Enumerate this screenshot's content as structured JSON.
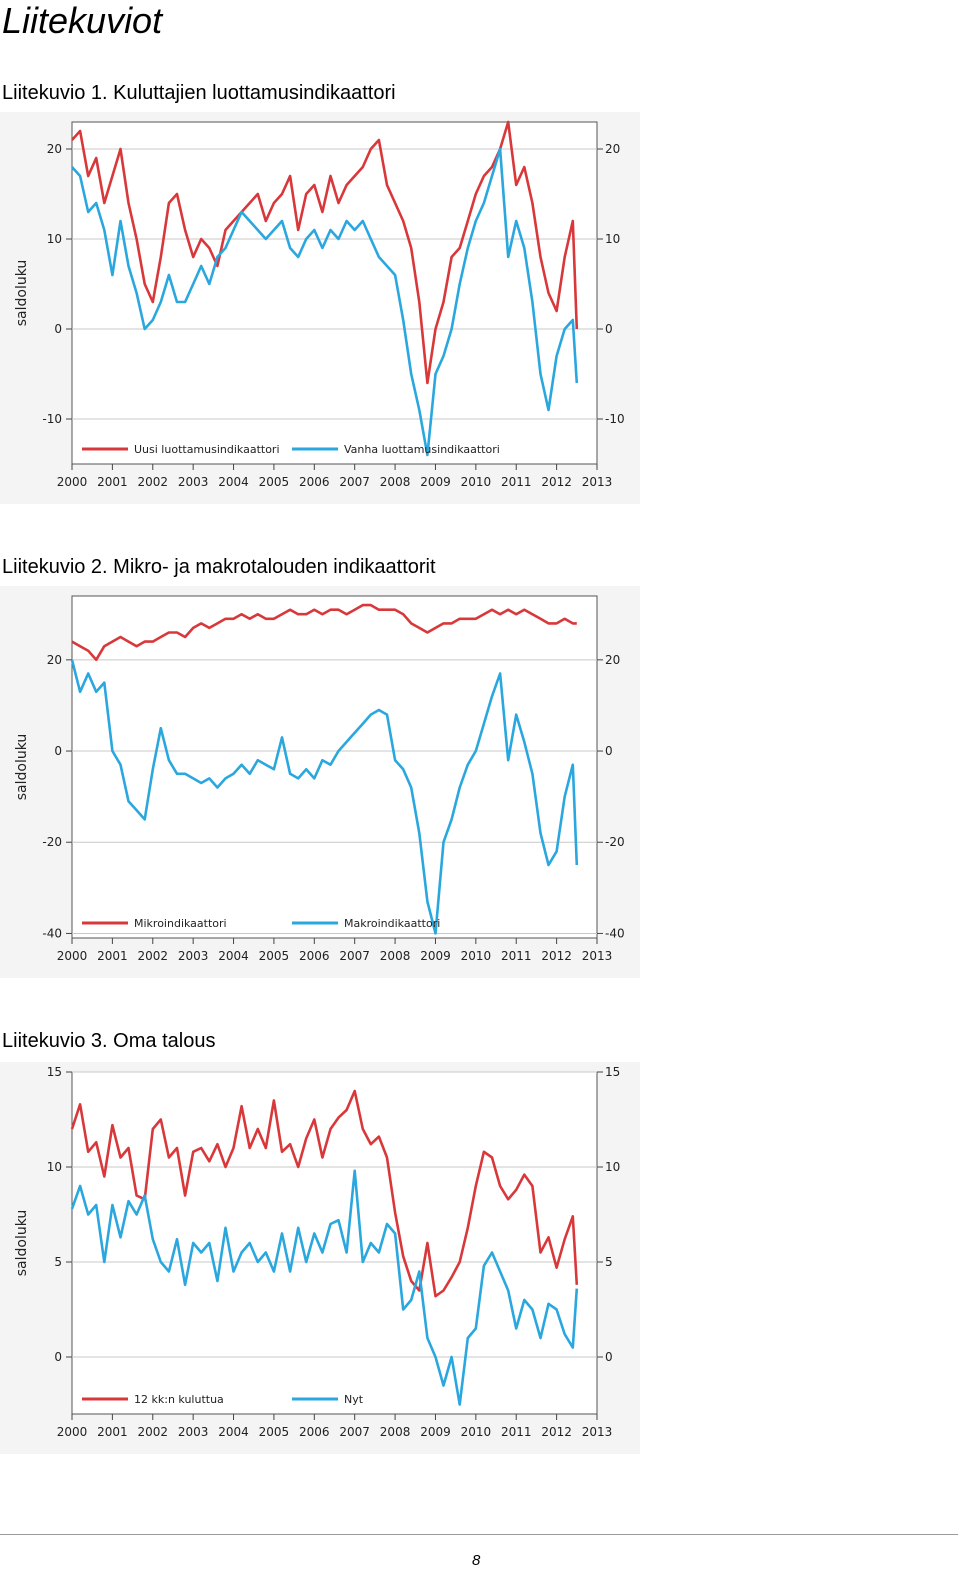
{
  "page": {
    "heading": "Liitekuviot",
    "page_number": "8"
  },
  "chart_data": [
    {
      "type": "line",
      "caption": "Liitekuvio 1. Kuluttajien luottamusindikaattori",
      "ylabel": "saldoluku",
      "ylim": [
        -15,
        23
      ],
      "yticks": [
        -10,
        0,
        10,
        20
      ],
      "xlim": [
        2000,
        2013
      ],
      "xticks": [
        "2000",
        "2001",
        "2002",
        "2003",
        "2004",
        "2005",
        "2006",
        "2007",
        "2008",
        "2009",
        "2010",
        "2011",
        "2012",
        "2013"
      ],
      "grid": "horizontal",
      "legend_position": "bottom-inside",
      "right_axis": true,
      "series": [
        {
          "name": "Uusi luottamusindikaattori",
          "color": "#d9383a",
          "x": [
            2000.0,
            2000.2,
            2000.4,
            2000.6,
            2000.8,
            2001.0,
            2001.2,
            2001.4,
            2001.6,
            2001.8,
            2002.0,
            2002.2,
            2002.4,
            2002.6,
            2002.8,
            2003.0,
            2003.2,
            2003.4,
            2003.6,
            2003.8,
            2004.0,
            2004.2,
            2004.4,
            2004.6,
            2004.8,
            2005.0,
            2005.2,
            2005.4,
            2005.6,
            2005.8,
            2006.0,
            2006.2,
            2006.4,
            2006.6,
            2006.8,
            2007.0,
            2007.2,
            2007.4,
            2007.6,
            2007.8,
            2008.0,
            2008.2,
            2008.4,
            2008.6,
            2008.8,
            2009.0,
            2009.2,
            2009.4,
            2009.6,
            2009.8,
            2010.0,
            2010.2,
            2010.4,
            2010.6,
            2010.8,
            2011.0,
            2011.2,
            2011.4,
            2011.6,
            2011.8,
            2012.0,
            2012.2,
            2012.4,
            2012.5
          ],
          "values": [
            21,
            22,
            17,
            19,
            14,
            17,
            20,
            14,
            10,
            5,
            3,
            8,
            14,
            15,
            11,
            8,
            10,
            9,
            7,
            11,
            12,
            13,
            14,
            15,
            12,
            14,
            15,
            17,
            11,
            15,
            16,
            13,
            17,
            14,
            16,
            17,
            18,
            20,
            21,
            16,
            14,
            12,
            9,
            3,
            -6,
            0,
            3,
            8,
            9,
            12,
            15,
            17,
            18,
            20,
            23,
            16,
            18,
            14,
            8,
            4,
            2,
            8,
            12,
            0
          ]
        },
        {
          "name": "Vanha luottamusindikaattori",
          "color": "#2aa7de",
          "x": [
            2000.0,
            2000.2,
            2000.4,
            2000.6,
            2000.8,
            2001.0,
            2001.2,
            2001.4,
            2001.6,
            2001.8,
            2002.0,
            2002.2,
            2002.4,
            2002.6,
            2002.8,
            2003.0,
            2003.2,
            2003.4,
            2003.6,
            2003.8,
            2004.0,
            2004.2,
            2004.4,
            2004.6,
            2004.8,
            2005.0,
            2005.2,
            2005.4,
            2005.6,
            2005.8,
            2006.0,
            2006.2,
            2006.4,
            2006.6,
            2006.8,
            2007.0,
            2007.2,
            2007.4,
            2007.6,
            2007.8,
            2008.0,
            2008.2,
            2008.4,
            2008.6,
            2008.8,
            2009.0,
            2009.2,
            2009.4,
            2009.6,
            2009.8,
            2010.0,
            2010.2,
            2010.4,
            2010.6,
            2010.8,
            2011.0,
            2011.2,
            2011.4,
            2011.6,
            2011.8,
            2012.0,
            2012.2,
            2012.4,
            2012.5
          ],
          "values": [
            18,
            17,
            13,
            14,
            11,
            6,
            12,
            7,
            4,
            0,
            1,
            3,
            6,
            3,
            3,
            5,
            7,
            5,
            8,
            9,
            11,
            13,
            12,
            11,
            10,
            11,
            12,
            9,
            8,
            10,
            11,
            9,
            11,
            10,
            12,
            11,
            12,
            10,
            8,
            7,
            6,
            1,
            -5,
            -9,
            -14,
            -5,
            -3,
            0,
            5,
            9,
            12,
            14,
            17,
            20,
            8,
            12,
            9,
            3,
            -5,
            -9,
            -3,
            0,
            1,
            -6
          ]
        }
      ]
    },
    {
      "type": "line",
      "caption": "Liitekuvio 2. Mikro- ja makrotalouden indikaattorit",
      "ylabel": "saldoluku",
      "ylim": [
        -41,
        34
      ],
      "yticks": [
        -40,
        -20,
        0,
        20
      ],
      "xlim": [
        2000,
        2013
      ],
      "xticks": [
        "2000",
        "2001",
        "2002",
        "2003",
        "2004",
        "2005",
        "2006",
        "2007",
        "2008",
        "2009",
        "2010",
        "2011",
        "2012",
        "2013"
      ],
      "grid": "horizontal",
      "legend_position": "bottom-inside",
      "right_axis": true,
      "series": [
        {
          "name": "Mikroindikaattori",
          "color": "#d9383a",
          "x": [
            2000.0,
            2000.2,
            2000.4,
            2000.6,
            2000.8,
            2001.0,
            2001.2,
            2001.4,
            2001.6,
            2001.8,
            2002.0,
            2002.2,
            2002.4,
            2002.6,
            2002.8,
            2003.0,
            2003.2,
            2003.4,
            2003.6,
            2003.8,
            2004.0,
            2004.2,
            2004.4,
            2004.6,
            2004.8,
            2005.0,
            2005.2,
            2005.4,
            2005.6,
            2005.8,
            2006.0,
            2006.2,
            2006.4,
            2006.6,
            2006.8,
            2007.0,
            2007.2,
            2007.4,
            2007.6,
            2007.8,
            2008.0,
            2008.2,
            2008.4,
            2008.6,
            2008.8,
            2009.0,
            2009.2,
            2009.4,
            2009.6,
            2009.8,
            2010.0,
            2010.2,
            2010.4,
            2010.6,
            2010.8,
            2011.0,
            2011.2,
            2011.4,
            2011.6,
            2011.8,
            2012.0,
            2012.2,
            2012.4,
            2012.5
          ],
          "values": [
            24,
            23,
            22,
            20,
            23,
            24,
            25,
            24,
            23,
            24,
            24,
            25,
            26,
            26,
            25,
            27,
            28,
            27,
            28,
            29,
            29,
            30,
            29,
            30,
            29,
            29,
            30,
            31,
            30,
            30,
            31,
            30,
            31,
            31,
            30,
            31,
            32,
            32,
            31,
            31,
            31,
            30,
            28,
            27,
            26,
            27,
            28,
            28,
            29,
            29,
            29,
            30,
            31,
            30,
            31,
            30,
            31,
            30,
            29,
            28,
            28,
            29,
            28,
            28
          ]
        },
        {
          "name": "Makroindikaattori",
          "color": "#2aa7de",
          "x": [
            2000.0,
            2000.2,
            2000.4,
            2000.6,
            2000.8,
            2001.0,
            2001.2,
            2001.4,
            2001.6,
            2001.8,
            2002.0,
            2002.2,
            2002.4,
            2002.6,
            2002.8,
            2003.0,
            2003.2,
            2003.4,
            2003.6,
            2003.8,
            2004.0,
            2004.2,
            2004.4,
            2004.6,
            2004.8,
            2005.0,
            2005.2,
            2005.4,
            2005.6,
            2005.8,
            2006.0,
            2006.2,
            2006.4,
            2006.6,
            2006.8,
            2007.0,
            2007.2,
            2007.4,
            2007.6,
            2007.8,
            2008.0,
            2008.2,
            2008.4,
            2008.6,
            2008.8,
            2009.0,
            2009.2,
            2009.4,
            2009.6,
            2009.8,
            2010.0,
            2010.2,
            2010.4,
            2010.6,
            2010.8,
            2011.0,
            2011.2,
            2011.4,
            2011.6,
            2011.8,
            2012.0,
            2012.2,
            2012.4,
            2012.5
          ],
          "values": [
            20,
            13,
            17,
            13,
            15,
            0,
            -3,
            -11,
            -13,
            -15,
            -4,
            5,
            -2,
            -5,
            -5,
            -6,
            -7,
            -6,
            -8,
            -6,
            -5,
            -3,
            -5,
            -2,
            -3,
            -4,
            3,
            -5,
            -6,
            -4,
            -6,
            -2,
            -3,
            0,
            2,
            4,
            6,
            8,
            9,
            8,
            -2,
            -4,
            -8,
            -18,
            -33,
            -40,
            -20,
            -15,
            -8,
            -3,
            0,
            6,
            12,
            17,
            -2,
            8,
            2,
            -5,
            -18,
            -25,
            -22,
            -10,
            -3,
            -25
          ]
        }
      ]
    },
    {
      "type": "line",
      "caption": "Liitekuvio 3. Oma talous",
      "ylabel": "saldoluku",
      "ylim": [
        -3,
        15
      ],
      "yticks": [
        0,
        5,
        10,
        15
      ],
      "xlim": [
        2000,
        2013
      ],
      "xticks": [
        "2000",
        "2001",
        "2002",
        "2003",
        "2004",
        "2005",
        "2006",
        "2007",
        "2008",
        "2009",
        "2010",
        "2011",
        "2012",
        "2013"
      ],
      "grid": "horizontal",
      "legend_position": "bottom-inside",
      "right_axis": true,
      "series": [
        {
          "name": "12 kk:n kuluttua",
          "color": "#d9383a",
          "x": [
            2000.0,
            2000.2,
            2000.4,
            2000.6,
            2000.8,
            2001.0,
            2001.2,
            2001.4,
            2001.6,
            2001.8,
            2002.0,
            2002.2,
            2002.4,
            2002.6,
            2002.8,
            2003.0,
            2003.2,
            2003.4,
            2003.6,
            2003.8,
            2004.0,
            2004.2,
            2004.4,
            2004.6,
            2004.8,
            2005.0,
            2005.2,
            2005.4,
            2005.6,
            2005.8,
            2006.0,
            2006.2,
            2006.4,
            2006.6,
            2006.8,
            2007.0,
            2007.2,
            2007.4,
            2007.6,
            2007.8,
            2008.0,
            2008.2,
            2008.4,
            2008.6,
            2008.8,
            2009.0,
            2009.2,
            2009.4,
            2009.6,
            2009.8,
            2010.0,
            2010.2,
            2010.4,
            2010.6,
            2010.8,
            2011.0,
            2011.2,
            2011.4,
            2011.6,
            2011.8,
            2012.0,
            2012.2,
            2012.4,
            2012.5
          ],
          "values": [
            12,
            13.3,
            10.8,
            11.3,
            9.5,
            12.2,
            10.5,
            11,
            8.5,
            8.3,
            12,
            12.5,
            10.5,
            11,
            8.5,
            10.8,
            11,
            10.3,
            11.2,
            10,
            11,
            13.2,
            11,
            12,
            11,
            13.5,
            10.8,
            11.2,
            10,
            11.5,
            12.5,
            10.5,
            12,
            12.6,
            13,
            14,
            12,
            11.2,
            11.6,
            10.5,
            7.6,
            5.3,
            4,
            3.5,
            6,
            3.2,
            3.5,
            4.2,
            5,
            6.8,
            9,
            10.8,
            10.5,
            9,
            8.3,
            8.8,
            9.6,
            9,
            5.5,
            6.3,
            4.7,
            6.2,
            7.4,
            3.8
          ]
        },
        {
          "name": "Nyt",
          "color": "#2aa7de",
          "x": [
            2000.0,
            2000.2,
            2000.4,
            2000.6,
            2000.8,
            2001.0,
            2001.2,
            2001.4,
            2001.6,
            2001.8,
            2002.0,
            2002.2,
            2002.4,
            2002.6,
            2002.8,
            2003.0,
            2003.2,
            2003.4,
            2003.6,
            2003.8,
            2004.0,
            2004.2,
            2004.4,
            2004.6,
            2004.8,
            2005.0,
            2005.2,
            2005.4,
            2005.6,
            2005.8,
            2006.0,
            2006.2,
            2006.4,
            2006.6,
            2006.8,
            2007.0,
            2007.2,
            2007.4,
            2007.6,
            2007.8,
            2008.0,
            2008.2,
            2008.4,
            2008.6,
            2008.8,
            2009.0,
            2009.2,
            2009.4,
            2009.6,
            2009.8,
            2010.0,
            2010.2,
            2010.4,
            2010.6,
            2010.8,
            2011.0,
            2011.2,
            2011.4,
            2011.6,
            2011.8,
            2012.0,
            2012.2,
            2012.4,
            2012.5
          ],
          "values": [
            7.8,
            9,
            7.5,
            8,
            5,
            8,
            6.3,
            8.2,
            7.5,
            8.5,
            6.2,
            5,
            4.5,
            6.2,
            3.8,
            6,
            5.5,
            6,
            4,
            6.8,
            4.5,
            5.5,
            6,
            5,
            5.5,
            4.5,
            6.5,
            4.5,
            6.8,
            5,
            6.5,
            5.5,
            7,
            7.2,
            5.5,
            9.8,
            5,
            6,
            5.5,
            7,
            6.5,
            2.5,
            3,
            4.5,
            1,
            0,
            -1.5,
            0,
            -2.5,
            1,
            1.5,
            4.8,
            5.5,
            4.5,
            3.5,
            1.5,
            3,
            2.5,
            1,
            2.8,
            2.5,
            1.2,
            0.5,
            3.6
          ]
        }
      ]
    }
  ]
}
